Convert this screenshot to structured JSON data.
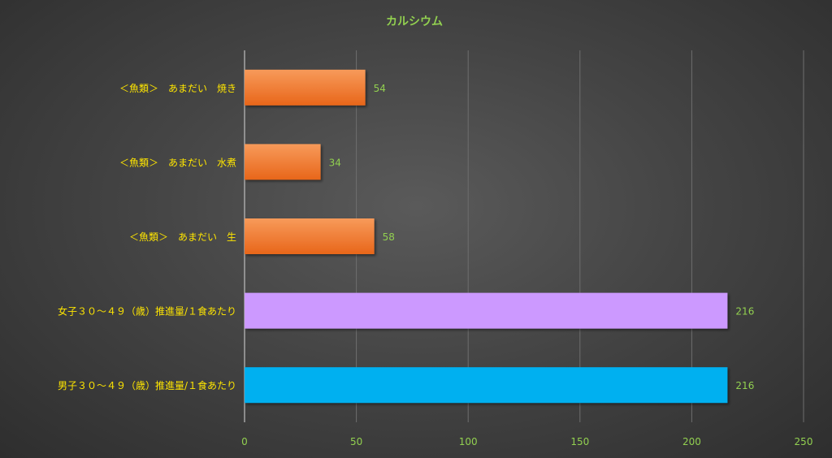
{
  "chart_data": {
    "type": "bar",
    "orientation": "horizontal",
    "title": "カルシウム",
    "categories": [
      "＜魚類＞　あまだい　焼き",
      "＜魚類＞　あまだい　水煮",
      "＜魚類＞　あまだい　生",
      "女子３０～４９（歳）推進量/１食あたり",
      "男子３０～４９（歳）推進量/１食あたり"
    ],
    "values": [
      54,
      34,
      58,
      216,
      216
    ],
    "colors": [
      "#f07a28",
      "#f07a28",
      "#f07a28",
      "#cc99ff",
      "#00b0f0"
    ],
    "xlim": [
      0,
      250
    ],
    "xticks": [
      0,
      50,
      100,
      150,
      200,
      250
    ],
    "data_labels": true,
    "grid": "vertical",
    "legend": "none"
  }
}
